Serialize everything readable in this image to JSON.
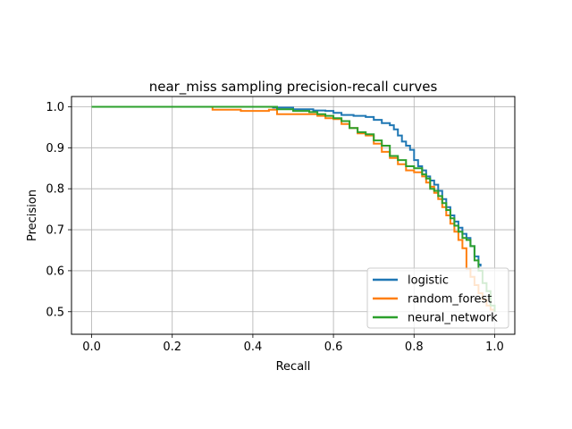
{
  "chart_data": {
    "type": "line",
    "title": "near_miss sampling precision-recall curves",
    "xlabel": "Recall",
    "ylabel": "Precision",
    "xlim": [
      -0.05,
      1.05
    ],
    "ylim": [
      0.445,
      1.025
    ],
    "xticks": [
      0.0,
      0.2,
      0.4,
      0.6,
      0.8,
      1.0
    ],
    "xtick_labels": [
      "0.0",
      "0.2",
      "0.4",
      "0.6",
      "0.8",
      "1.0"
    ],
    "yticks": [
      0.5,
      0.6,
      0.7,
      0.8,
      0.9,
      1.0
    ],
    "ytick_labels": [
      "0.5",
      "0.6",
      "0.7",
      "0.8",
      "0.9",
      "1.0"
    ],
    "grid": true,
    "legend_position": "lower-right",
    "series": [
      {
        "name": "logistic",
        "color": "#1f77b4",
        "x": [
          0.0,
          0.3,
          0.45,
          0.5,
          0.55,
          0.58,
          0.6,
          0.62,
          0.65,
          0.68,
          0.7,
          0.72,
          0.74,
          0.75,
          0.76,
          0.77,
          0.78,
          0.79,
          0.8,
          0.81,
          0.82,
          0.83,
          0.84,
          0.85,
          0.86,
          0.87,
          0.88,
          0.89,
          0.9,
          0.91,
          0.92,
          0.93,
          0.94,
          0.95,
          0.96,
          0.965
        ],
        "y": [
          1.0,
          1.0,
          0.998,
          0.994,
          0.991,
          0.99,
          0.985,
          0.98,
          0.978,
          0.975,
          0.968,
          0.96,
          0.955,
          0.945,
          0.93,
          0.915,
          0.905,
          0.895,
          0.87,
          0.855,
          0.845,
          0.83,
          0.82,
          0.81,
          0.795,
          0.775,
          0.755,
          0.735,
          0.72,
          0.705,
          0.69,
          0.68,
          0.66,
          0.635,
          0.615,
          0.61
        ]
      },
      {
        "name": "random_forest",
        "color": "#ff7f0e",
        "x": [
          0.0,
          0.3,
          0.3,
          0.37,
          0.44,
          0.46,
          0.52,
          0.56,
          0.58,
          0.6,
          0.62,
          0.64,
          0.66,
          0.68,
          0.7,
          0.72,
          0.74,
          0.76,
          0.78,
          0.8,
          0.82,
          0.83,
          0.84,
          0.85,
          0.86,
          0.87,
          0.88,
          0.89,
          0.9,
          0.91,
          0.92,
          0.93,
          0.94,
          0.95,
          0.96,
          0.97,
          0.98,
          0.99,
          1.0
        ],
        "y": [
          1.0,
          1.0,
          0.993,
          0.99,
          0.993,
          0.982,
          0.982,
          0.978,
          0.972,
          0.97,
          0.958,
          0.948,
          0.935,
          0.93,
          0.91,
          0.89,
          0.875,
          0.86,
          0.845,
          0.84,
          0.83,
          0.815,
          0.805,
          0.79,
          0.775,
          0.755,
          0.735,
          0.715,
          0.695,
          0.675,
          0.655,
          0.605,
          0.585,
          0.565,
          0.545,
          0.53,
          0.515,
          0.505,
          0.5
        ]
      },
      {
        "name": "neural_network",
        "color": "#2ca02c",
        "x": [
          0.0,
          0.42,
          0.46,
          0.5,
          0.54,
          0.56,
          0.58,
          0.6,
          0.62,
          0.64,
          0.66,
          0.68,
          0.7,
          0.72,
          0.74,
          0.76,
          0.78,
          0.8,
          0.82,
          0.83,
          0.84,
          0.85,
          0.86,
          0.87,
          0.88,
          0.89,
          0.9,
          0.91,
          0.92,
          0.93,
          0.94,
          0.95,
          0.96,
          0.97,
          0.98,
          0.99,
          1.0
        ],
        "y": [
          1.0,
          1.0,
          0.994,
          0.99,
          0.987,
          0.982,
          0.978,
          0.972,
          0.965,
          0.948,
          0.938,
          0.933,
          0.918,
          0.905,
          0.88,
          0.87,
          0.855,
          0.85,
          0.835,
          0.825,
          0.8,
          0.795,
          0.782,
          0.765,
          0.748,
          0.728,
          0.71,
          0.695,
          0.68,
          0.675,
          0.66,
          0.625,
          0.6,
          0.57,
          0.55,
          0.515,
          0.5
        ]
      }
    ]
  }
}
